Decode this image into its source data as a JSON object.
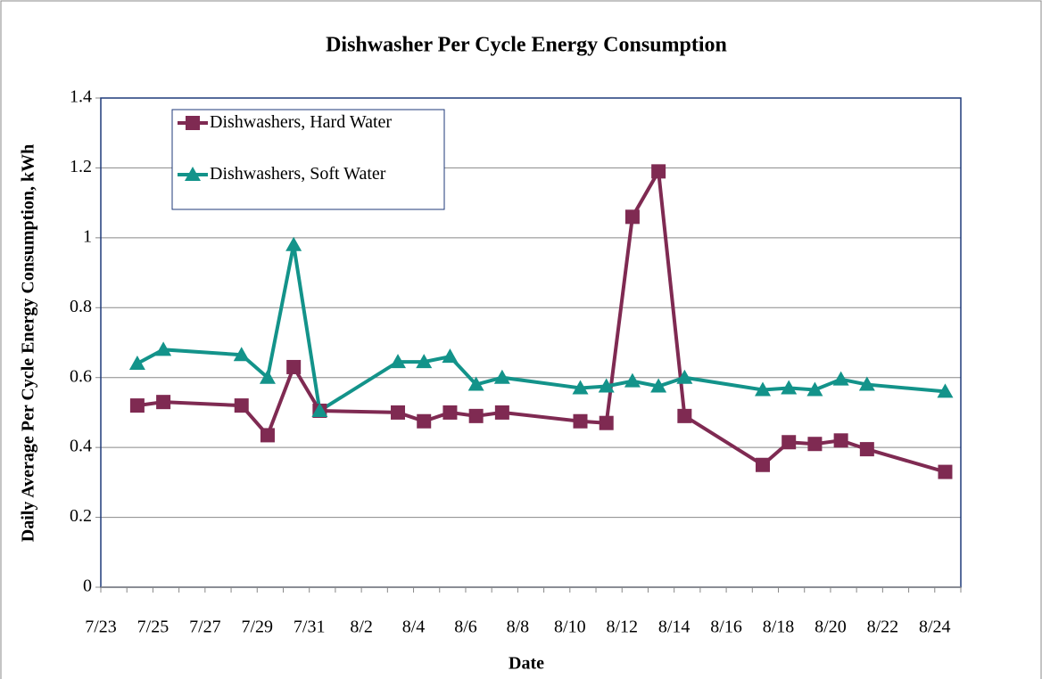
{
  "chart_data": {
    "type": "line",
    "title": "Dishwasher Per Cycle Energy Consumption",
    "x_label": "Date",
    "y_label": "Daily Average  Per Cycle Energy Consumption, kWh",
    "x": [
      "7/24",
      "7/25",
      "7/28",
      "7/29",
      "7/30",
      "7/31",
      "8/3",
      "8/4",
      "8/5",
      "8/6",
      "8/7",
      "8/10",
      "8/11",
      "8/12",
      "8/13",
      "8/14",
      "8/17",
      "8/18",
      "8/19",
      "8/20",
      "8/21",
      "8/24"
    ],
    "series": [
      {
        "name": "Dishwashers, Hard Water",
        "color": "#7f2a52",
        "marker": "square",
        "values": [
          0.52,
          0.53,
          0.52,
          0.435,
          0.63,
          0.505,
          0.5,
          0.475,
          0.5,
          0.49,
          0.5,
          0.475,
          0.47,
          1.06,
          1.19,
          0.49,
          0.35,
          0.415,
          0.41,
          0.42,
          0.395,
          0.33
        ]
      },
      {
        "name": "Dishwashers, Soft Water",
        "color": "#13938a",
        "marker": "triangle",
        "values": [
          0.64,
          0.68,
          0.665,
          0.6,
          0.98,
          0.505,
          0.645,
          0.645,
          0.66,
          0.58,
          0.6,
          0.57,
          0.575,
          0.59,
          0.575,
          0.6,
          0.565,
          0.57,
          0.565,
          0.595,
          0.58,
          0.56
        ]
      }
    ],
    "xlim": [
      "7/23",
      "8/25"
    ],
    "xticks": [
      "7/23",
      "7/25",
      "7/27",
      "7/29",
      "7/31",
      "8/2",
      "8/4",
      "8/6",
      "8/8",
      "8/10",
      "8/12",
      "8/14",
      "8/16",
      "8/18",
      "8/20",
      "8/22",
      "8/24"
    ],
    "ylim": [
      0,
      1.4
    ],
    "yticks": [
      0,
      0.2,
      0.4,
      0.6,
      0.8,
      1,
      1.2,
      1.4
    ],
    "grid": true,
    "legend": "upper left"
  }
}
